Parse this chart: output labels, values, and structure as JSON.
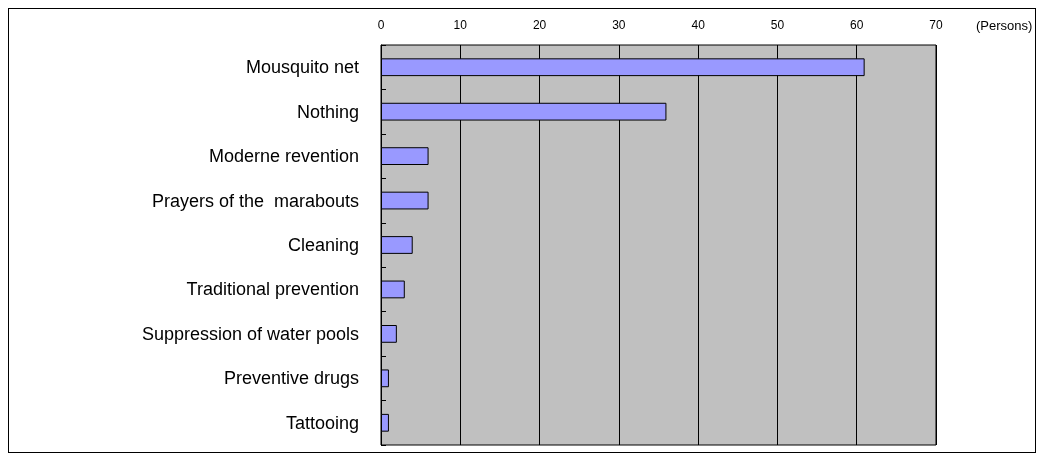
{
  "chart_data": {
    "type": "bar",
    "orientation": "horizontal",
    "xlabel": "(Persons)",
    "categories": [
      "Mousquito net",
      "Nothing",
      "Moderne revention",
      "Prayers of the  marabouts",
      "Cleaning",
      "Traditional prevention",
      "Suppression of water pools",
      "Preventive drugs",
      "Tattooing"
    ],
    "values": [
      61,
      36,
      6,
      6,
      4,
      3,
      2,
      1,
      1
    ],
    "color": "#9999ff",
    "xlim": [
      0,
      70
    ],
    "xticks": [
      0,
      10,
      20,
      30,
      40,
      50,
      60,
      70
    ],
    "grid": "x"
  }
}
